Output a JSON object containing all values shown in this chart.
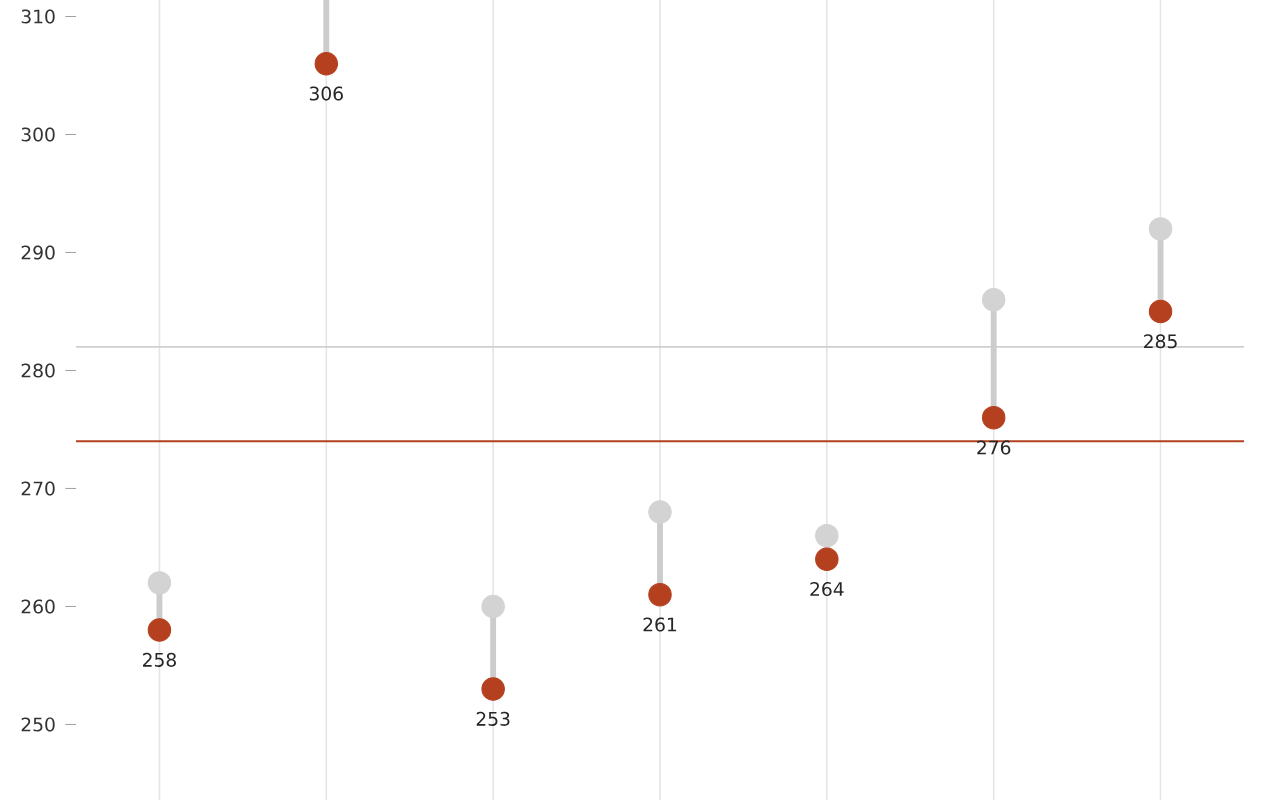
{
  "chart_data": {
    "type": "scatter",
    "categories": [
      null,
      null,
      null,
      null,
      null,
      null,
      null
    ],
    "series": [
      {
        "color": "#d3d3d3",
        "values": [
          262,
          null,
          260,
          268,
          266,
          286,
          292
        ]
      },
      {
        "color": "#b5401f",
        "values": [
          258,
          306,
          253,
          261,
          264,
          276,
          285
        ],
        "value_labels": [
          "258",
          "306",
          "253",
          "261",
          "264",
          "276",
          "285"
        ]
      }
    ],
    "ylim": [
      243.6,
      311.4
    ],
    "yticks": [
      250,
      260,
      270,
      280,
      290,
      300,
      310
    ],
    "grid": "x",
    "marker": "circle",
    "tick_labels": "y",
    "ref_lines": [
      {
        "axis": "y",
        "value": 282,
        "color": "#cfcfcf"
      },
      {
        "axis": "y",
        "value": 274,
        "color": "#b5401f"
      }
    ]
  }
}
